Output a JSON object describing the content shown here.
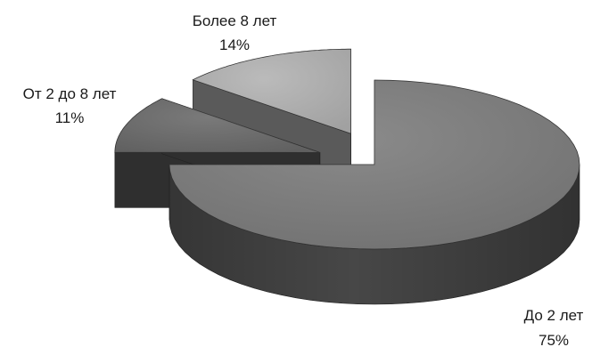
{
  "chart_data": {
    "type": "pie",
    "style": "3d-exploded",
    "title": "",
    "slices": [
      {
        "label": "До 2 лет",
        "value": 75,
        "value_label": "75%",
        "color": "#7d7d7d",
        "side_color": "#474747"
      },
      {
        "label": "От 2 до 8 лет",
        "value": 11,
        "value_label": "11%",
        "color": "#6b6b6b",
        "side_color": "#2f2f2f"
      },
      {
        "label": "Более 8 лет",
        "value": 14,
        "value_label": "14%",
        "color": "#b3b3b3",
        "side_color": "#5a5a5a"
      }
    ],
    "legend": "none"
  }
}
